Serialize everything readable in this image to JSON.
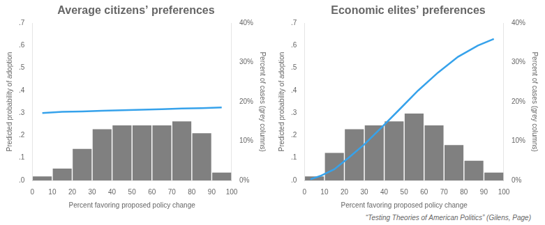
{
  "chart_data": [
    {
      "type": "bar",
      "title": "Average citizens’ preferences",
      "x_label": "Percent favoring proposed policy change",
      "y_label": "Predicted probability of adoption",
      "y2_label": "Percent of cases (grey columns)",
      "grid": false,
      "xlim": [
        0,
        100
      ],
      "xticks": [
        0,
        10,
        20,
        30,
        40,
        50,
        60,
        70,
        80,
        90,
        100
      ],
      "ylim": [
        0.0,
        0.7
      ],
      "yticks": [
        {
          "value": 0.0,
          "label": ".0"
        },
        {
          "value": 0.1,
          "label": ".1"
        },
        {
          "value": 0.2,
          "label": ".2"
        },
        {
          "value": 0.3,
          "label": ".3"
        },
        {
          "value": 0.4,
          "label": ".4"
        },
        {
          "value": 0.5,
          "label": ".5"
        },
        {
          "value": 0.6,
          "label": ".6"
        },
        {
          "value": 0.7,
          "label": ".7"
        }
      ],
      "y2lim": [
        0,
        40
      ],
      "y2ticks": [
        {
          "value": 0,
          "label": "0%"
        },
        {
          "value": 10,
          "label": "10%"
        },
        {
          "value": 20,
          "label": "20%"
        },
        {
          "value": 30,
          "label": "30%"
        },
        {
          "value": 40,
          "label": "40%"
        }
      ],
      "series": [
        {
          "type": "bar",
          "axis": "y2",
          "color": "#808080",
          "x": [
            5,
            15,
            25,
            35,
            45,
            55,
            65,
            75,
            85,
            95
          ],
          "values": [
            1.0,
            3.0,
            8.0,
            13.0,
            14.0,
            14.0,
            14.0,
            15.0,
            12.0,
            2.0
          ]
        },
        {
          "type": "line",
          "color": "#36a2eb",
          "x": [
            5,
            15,
            25,
            35,
            45,
            55,
            65,
            75,
            85,
            95
          ],
          "values": [
            0.3,
            0.305,
            0.307,
            0.31,
            0.312,
            0.315,
            0.317,
            0.32,
            0.322,
            0.325
          ]
        }
      ]
    },
    {
      "type": "bar",
      "title": "Economic elites’ preferences",
      "x_label": "Percent favoring proposed policy change",
      "y_label": "Predicted probability of adoption",
      "y2_label": "Percent of cases (grey columns)",
      "grid": false,
      "xlim": [
        0,
        100
      ],
      "xticks": [
        0,
        10,
        20,
        30,
        40,
        50,
        60,
        70,
        80,
        90,
        100
      ],
      "ylim": [
        0.0,
        0.7
      ],
      "yticks": [
        {
          "value": 0.0,
          "label": ".0"
        },
        {
          "value": 0.1,
          "label": ".1"
        },
        {
          "value": 0.2,
          "label": ".2"
        },
        {
          "value": 0.3,
          "label": ".3"
        },
        {
          "value": 0.4,
          "label": ".4"
        },
        {
          "value": 0.5,
          "label": ".5"
        },
        {
          "value": 0.6,
          "label": ".6"
        },
        {
          "value": 0.7,
          "label": ".7"
        }
      ],
      "y2lim": [
        0,
        40
      ],
      "y2ticks": [
        {
          "value": 0,
          "label": "0%"
        },
        {
          "value": 10,
          "label": "10%"
        },
        {
          "value": 20,
          "label": "20%"
        },
        {
          "value": 30,
          "label": "30%"
        },
        {
          "value": 40,
          "label": "40%"
        }
      ],
      "series": [
        {
          "type": "bar",
          "axis": "y2",
          "color": "#808080",
          "x": [
            5,
            15,
            25,
            35,
            45,
            55,
            65,
            75,
            85,
            95
          ],
          "values": [
            1.0,
            7.0,
            13.0,
            14.0,
            15.0,
            17.0,
            14.0,
            9.0,
            5.0,
            2.0
          ]
        },
        {
          "type": "line",
          "color": "#36a2eb",
          "x": [
            3,
            8,
            15,
            22,
            30,
            38,
            47,
            57,
            67,
            77,
            87,
            95
          ],
          "values": [
            0.005,
            0.02,
            0.05,
            0.1,
            0.16,
            0.23,
            0.31,
            0.4,
            0.48,
            0.55,
            0.6,
            0.63
          ]
        }
      ]
    }
  ],
  "footnote": "“Testing Theories of American Politics” (Gilens, Page)"
}
